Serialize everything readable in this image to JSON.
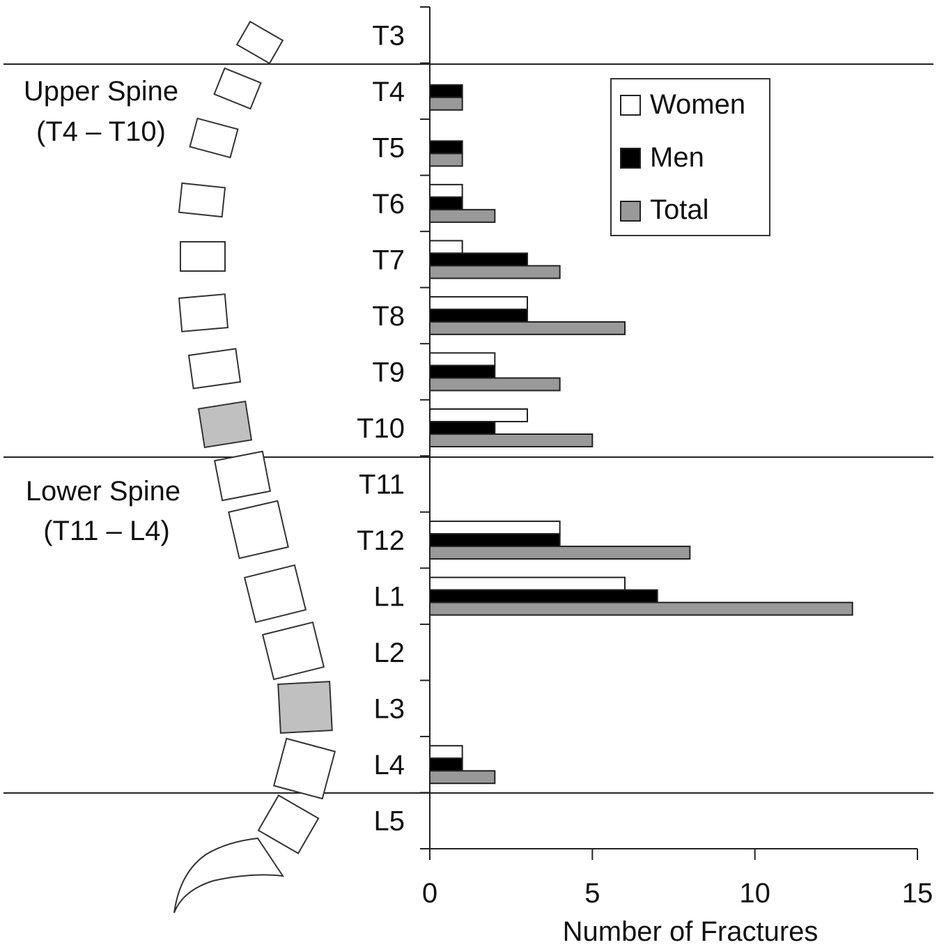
{
  "chart_data": {
    "type": "bar",
    "orientation": "horizontal",
    "categories": [
      "T3",
      "T4",
      "T5",
      "T6",
      "T7",
      "T8",
      "T9",
      "T10",
      "T11",
      "T12",
      "L1",
      "L2",
      "L3",
      "L4",
      "L5"
    ],
    "series": [
      {
        "name": "Women",
        "color": "#ffffff",
        "values": [
          0,
          0,
          0,
          1,
          1,
          3,
          2,
          3,
          0,
          4,
          6,
          0,
          0,
          1,
          0
        ]
      },
      {
        "name": "Men",
        "color": "#000000",
        "values": [
          0,
          1,
          1,
          1,
          3,
          3,
          2,
          2,
          0,
          4,
          7,
          0,
          0,
          1,
          0
        ]
      },
      {
        "name": "Total",
        "color": "#999999",
        "values": [
          0,
          1,
          1,
          2,
          4,
          6,
          4,
          5,
          0,
          8,
          13,
          0,
          0,
          2,
          0
        ]
      }
    ],
    "xlabel": "Number of Fractures",
    "xlim": [
      0,
      15
    ],
    "xticks": [
      "0",
      "5",
      "10",
      "15"
    ],
    "grid": false,
    "legend_position": "top-right",
    "regions": [
      {
        "line1": "Upper Spine",
        "line2": "(T4 – T10)"
      },
      {
        "line1": "Lower Spine",
        "line2": "(T11 – L4)"
      }
    ],
    "highlighted_vertebrae": [
      "T10",
      "L3"
    ],
    "highlight_color": "#c0c0c0"
  }
}
